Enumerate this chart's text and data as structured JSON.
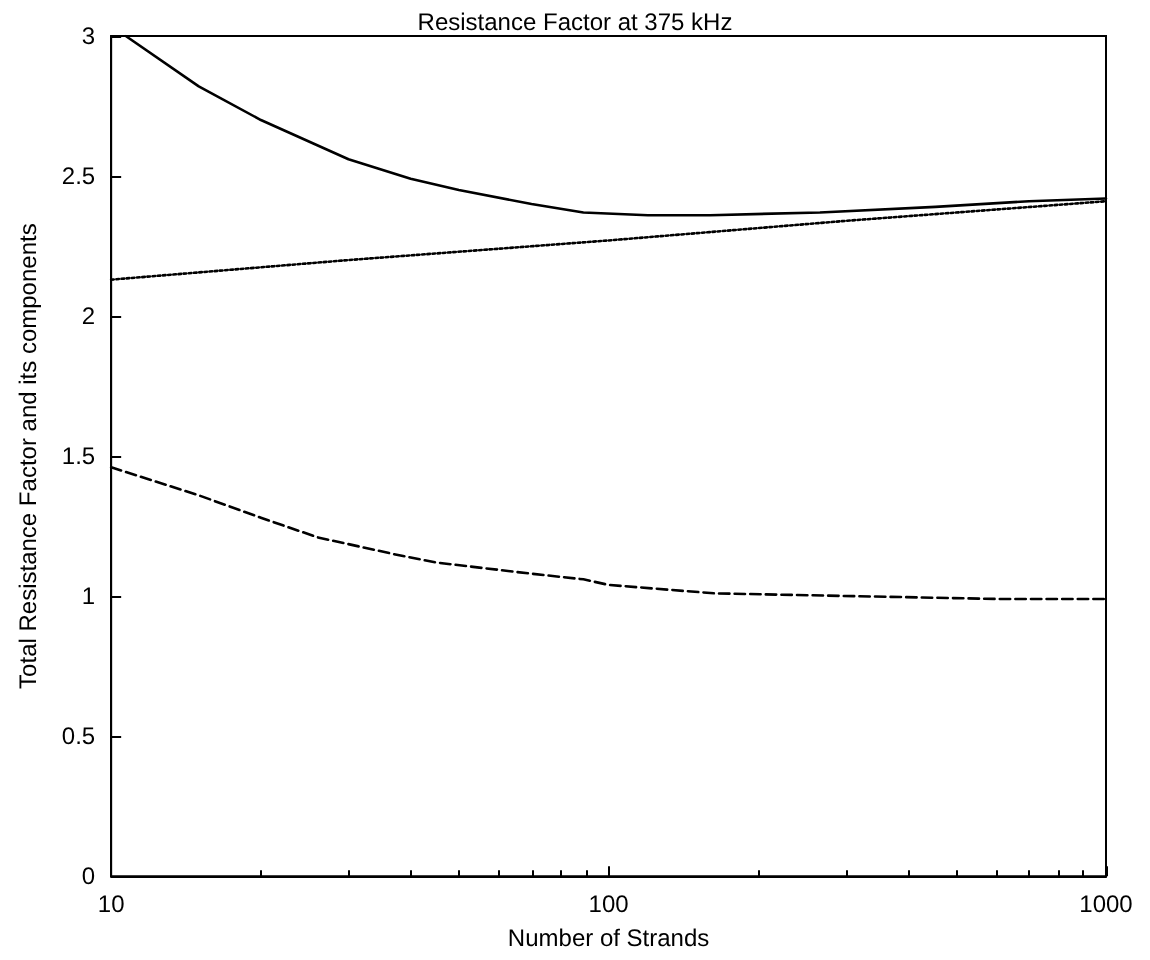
{
  "chart_data": {
    "type": "line",
    "title": "Resistance Factor at 375 kHz",
    "xlabel": "Number of Strands",
    "ylabel": "Total Resistance Factor and its components",
    "log": "x",
    "xlim": [
      10,
      1000
    ],
    "xticks": [
      10,
      100,
      1000
    ],
    "ylim": [
      0,
      3
    ],
    "yticks": [
      0,
      0.5,
      1,
      1.5,
      2,
      2.5,
      3
    ],
    "marker": "none",
    "series": [
      {
        "color": "#000000",
        "line_style": "solid",
        "x": [
          10.7,
          15,
          20,
          30,
          40,
          50,
          70,
          89,
          120,
          160,
          266,
          454,
          700,
          1000
        ],
        "values": [
          3,
          2.82,
          2.7,
          2.56,
          2.49,
          2.45,
          2.4,
          2.37,
          2.36,
          2.36,
          2.37,
          2.39,
          2.41,
          2.42
        ]
      },
      {
        "color": "#000000",
        "line_style": "dotted",
        "x": [
          10,
          30,
          100,
          300,
          1000
        ],
        "values": [
          2.13,
          2.2,
          2.27,
          2.34,
          2.41
        ]
      },
      {
        "color": "#000000",
        "line_style": "dashed",
        "x": [
          10,
          15,
          20,
          26,
          37,
          45,
          70,
          89,
          100,
          163,
          311,
          600,
          1000
        ],
        "values": [
          1.46,
          1.36,
          1.28,
          1.21,
          1.15,
          1.12,
          1.08,
          1.06,
          1.04,
          1.01,
          1.0,
          0.99,
          0.99
        ]
      }
    ]
  }
}
